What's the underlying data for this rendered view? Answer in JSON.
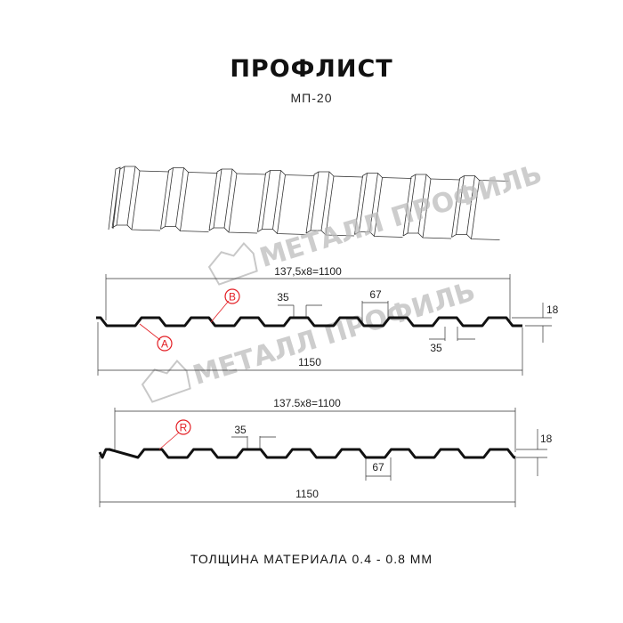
{
  "title": "ПРОФЛИСТ",
  "subtitle": "МП-20",
  "footer": "ТОЛЩИНА МАТЕРИАЛА 0.4 - 0.8 ММ",
  "watermark": "МЕТАЛЛ ПРОФИЛЬ",
  "colors": {
    "profile": "#111111",
    "callout": "#e31e24",
    "watermark": "#bdbdbd"
  },
  "profile_a": {
    "pitch_label": "137,5x8=1100",
    "width_label": "1150",
    "crest_label": "35",
    "valley_label": "35",
    "top_label": "67",
    "height_label": "18",
    "callout_a": "A",
    "callout_b": "B"
  },
  "profile_b": {
    "pitch_label": "137.5x8=1100",
    "width_label": "1150",
    "crest_label": "35",
    "bottom_label": "67",
    "height_label": "18",
    "callout_r": "R"
  }
}
